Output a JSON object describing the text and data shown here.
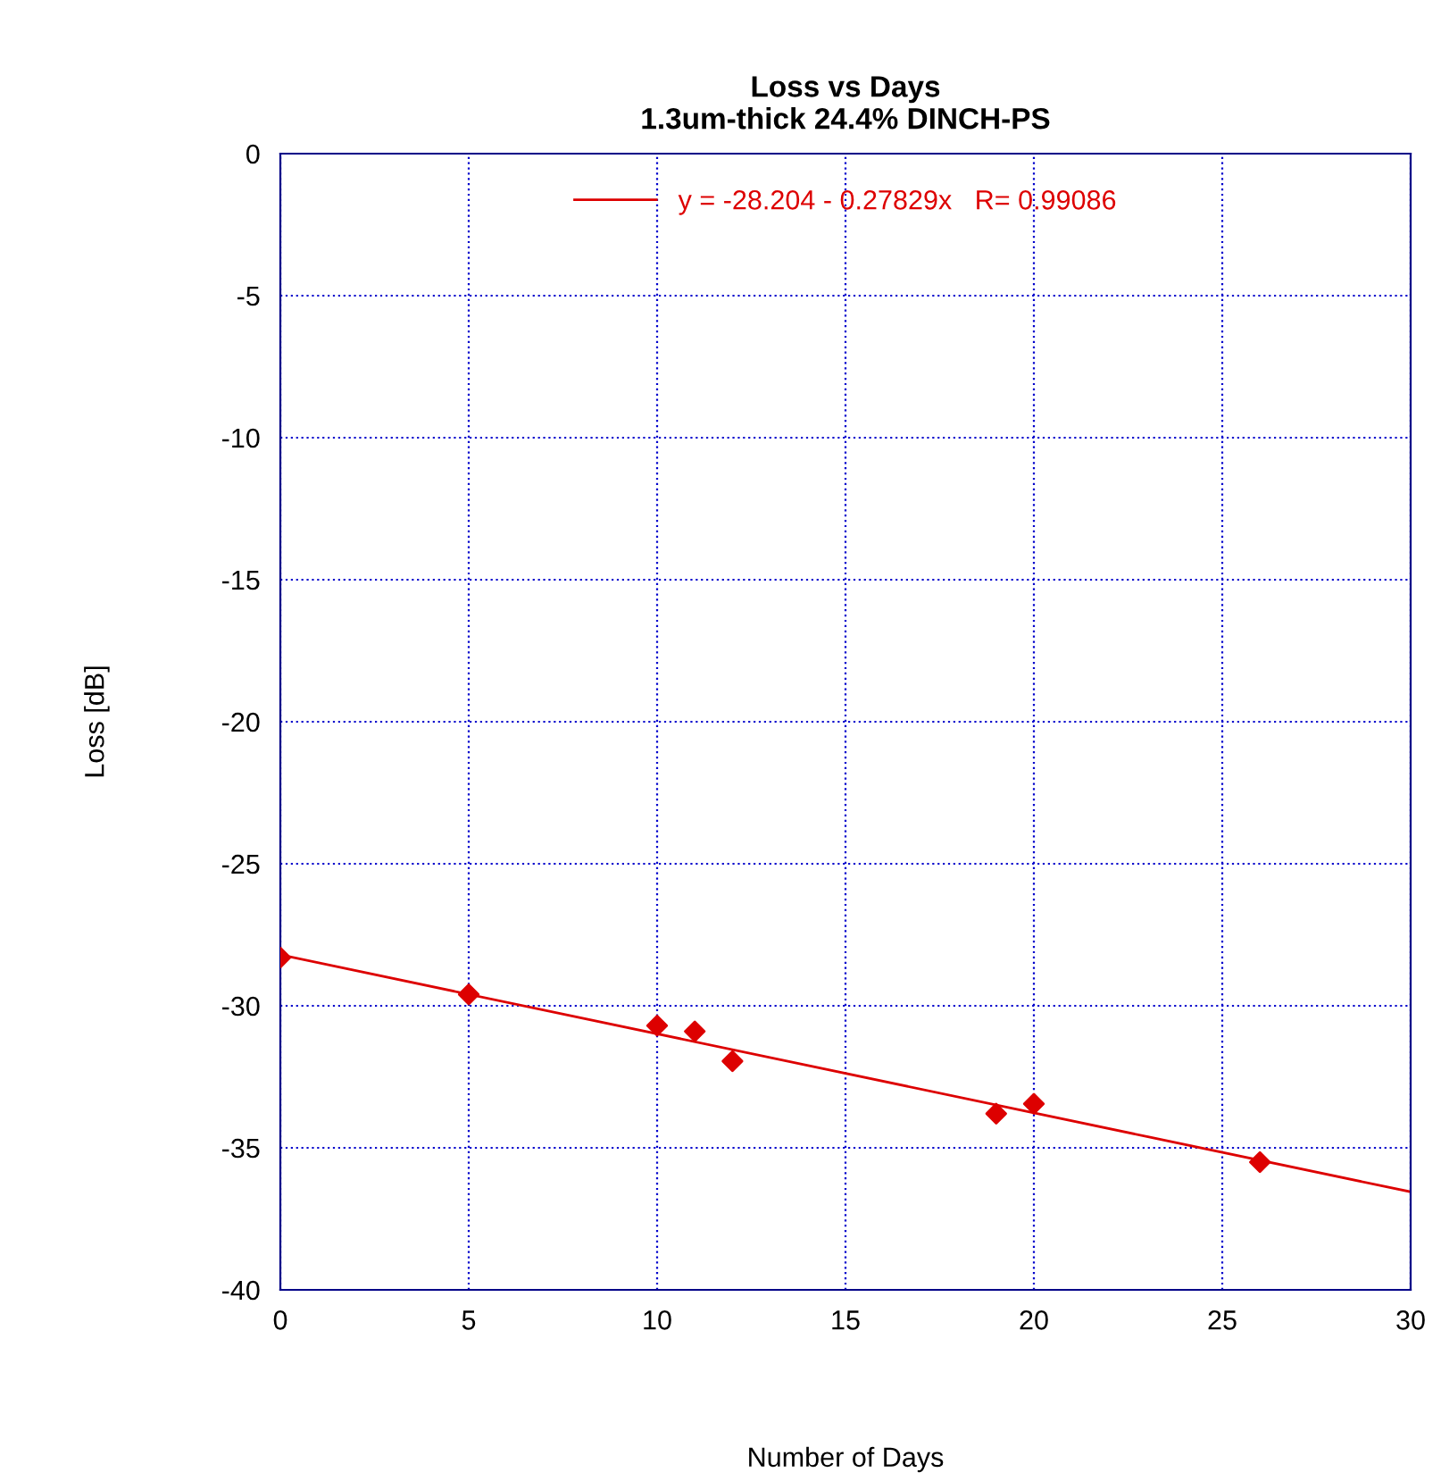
{
  "chart_data": {
    "type": "scatter",
    "title": "Loss vs Days\n1.3um-thick 24.4% DINCH-PS",
    "xlabel": "Number of Days",
    "ylabel": "Loss [dB]",
    "xlim": [
      0,
      30
    ],
    "ylim": [
      -40,
      0
    ],
    "xticks": [
      0,
      5,
      10,
      15,
      20,
      25,
      30
    ],
    "yticks": [
      -40,
      -35,
      -30,
      -25,
      -20,
      -15,
      -10,
      -5,
      0
    ],
    "grid": true,
    "legend": "top",
    "marker": "diamond",
    "series": [
      {
        "color": "#dd0000",
        "x": [
          0,
          5,
          10,
          11,
          12,
          19,
          20,
          26
        ],
        "values": [
          -28.3,
          -29.6,
          -30.7,
          -30.9,
          -31.95,
          -33.8,
          -33.45,
          -35.5
        ]
      },
      {
        "type": "line",
        "name": "y = -28.204 - 0.27829x   R= 0.99086",
        "color": "#dd0000",
        "x": [
          0,
          30
        ],
        "values": [
          -28.204,
          -36.55
        ],
        "marker": "none",
        "line_style": "solid"
      }
    ]
  }
}
